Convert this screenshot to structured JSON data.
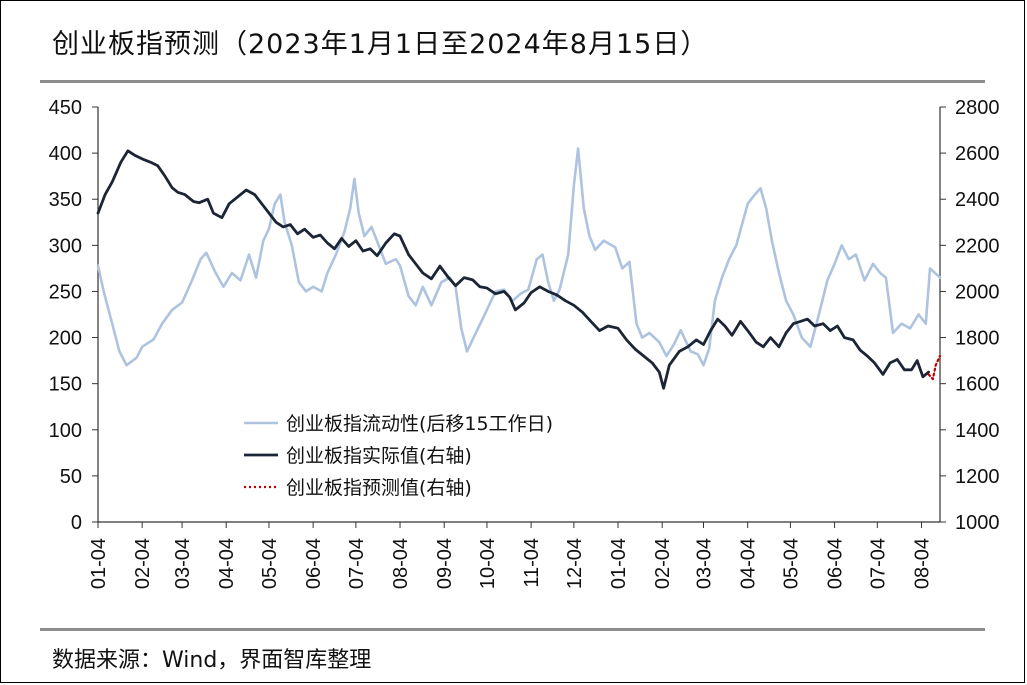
{
  "header": {
    "title": "创业板指预测（2023年1月1日至2024年8月15日）"
  },
  "footer": {
    "source": "数据来源：Wind，界面智库整理"
  },
  "colors": {
    "liquidity": "#aec3df",
    "actual": "#1b2535",
    "forecast": "#c00000",
    "axis": "#333333",
    "rule": "#8c8c8c"
  },
  "chart_data": {
    "type": "line",
    "title": "创业板指预测（2023年1月1日至2024年8月15日）",
    "x_ticks": [
      "01-04",
      "02-04",
      "03-04",
      "04-04",
      "05-04",
      "06-04",
      "07-04",
      "08-04",
      "09-04",
      "10-04",
      "11-04",
      "12-04",
      "01-04",
      "02-04",
      "03-04",
      "04-04",
      "05-04",
      "06-04",
      "07-04",
      "08-04"
    ],
    "x_tick_dates": [
      "2023-01-04",
      "2023-02-04",
      "2023-03-04",
      "2023-04-04",
      "2023-05-04",
      "2023-06-04",
      "2023-07-04",
      "2023-08-04",
      "2023-09-04",
      "2023-10-04",
      "2023-11-04",
      "2023-12-04",
      "2024-01-04",
      "2024-02-04",
      "2024-03-04",
      "2024-04-04",
      "2024-05-04",
      "2024-06-04",
      "2024-07-04",
      "2024-08-04"
    ],
    "x_range": [
      "2023-01-04",
      "2024-08-17"
    ],
    "y_left": {
      "ticks": [
        0,
        50,
        100,
        150,
        200,
        250,
        300,
        350,
        400,
        450
      ],
      "lim": [
        0,
        450
      ]
    },
    "y_right": {
      "ticks": [
        1000,
        1200,
        1400,
        1600,
        1800,
        2000,
        2200,
        2400,
        2600,
        2800
      ],
      "lim": [
        1000,
        2800
      ]
    },
    "legend": [
      "创业板指流动性(后移15工作日)",
      "创业板指实际值(右轴)",
      "创业板指预测值(右轴)"
    ],
    "legend_position": "bottom-center",
    "series": [
      {
        "name": "创业板指流动性(后移15工作日)",
        "axis": "left",
        "points": [
          [
            "2023-01-04",
            278
          ],
          [
            "2023-01-08",
            250
          ],
          [
            "2023-01-14",
            215
          ],
          [
            "2023-01-19",
            185
          ],
          [
            "2023-01-24",
            170
          ],
          [
            "2023-01-31",
            178
          ],
          [
            "2023-02-04",
            190
          ],
          [
            "2023-02-12",
            198
          ],
          [
            "2023-02-18",
            215
          ],
          [
            "2023-02-25",
            230
          ],
          [
            "2023-03-04",
            238
          ],
          [
            "2023-03-11",
            262
          ],
          [
            "2023-03-17",
            285
          ],
          [
            "2023-03-21",
            292
          ],
          [
            "2023-03-27",
            272
          ],
          [
            "2023-04-02",
            255
          ],
          [
            "2023-04-08",
            270
          ],
          [
            "2023-04-14",
            262
          ],
          [
            "2023-04-20",
            290
          ],
          [
            "2023-04-25",
            265
          ],
          [
            "2023-04-30",
            305
          ],
          [
            "2023-05-04",
            318
          ],
          [
            "2023-05-08",
            345
          ],
          [
            "2023-05-12",
            355
          ],
          [
            "2023-05-15",
            325
          ],
          [
            "2023-05-20",
            300
          ],
          [
            "2023-05-25",
            260
          ],
          [
            "2023-05-30",
            250
          ],
          [
            "2023-06-04",
            255
          ],
          [
            "2023-06-10",
            250
          ],
          [
            "2023-06-14",
            270
          ],
          [
            "2023-06-20",
            290
          ],
          [
            "2023-06-26",
            315
          ],
          [
            "2023-06-30",
            340
          ],
          [
            "2023-07-03",
            372
          ],
          [
            "2023-07-06",
            335
          ],
          [
            "2023-07-10",
            310
          ],
          [
            "2023-07-15",
            320
          ],
          [
            "2023-07-20",
            300
          ],
          [
            "2023-07-25",
            280
          ],
          [
            "2023-08-01",
            285
          ],
          [
            "2023-08-04",
            278
          ],
          [
            "2023-08-10",
            245
          ],
          [
            "2023-08-15",
            235
          ],
          [
            "2023-08-20",
            255
          ],
          [
            "2023-08-26",
            235
          ],
          [
            "2023-09-02",
            260
          ],
          [
            "2023-09-08",
            265
          ],
          [
            "2023-09-12",
            255
          ],
          [
            "2023-09-16",
            210
          ],
          [
            "2023-09-20",
            185
          ],
          [
            "2023-09-24",
            198
          ],
          [
            "2023-10-04",
            230
          ],
          [
            "2023-10-10",
            250
          ],
          [
            "2023-10-16",
            252
          ],
          [
            "2023-10-22",
            240
          ],
          [
            "2023-10-28",
            248
          ],
          [
            "2023-11-02",
            252
          ],
          [
            "2023-11-08",
            285
          ],
          [
            "2023-11-12",
            290
          ],
          [
            "2023-11-16",
            260
          ],
          [
            "2023-11-20",
            240
          ],
          [
            "2023-11-24",
            252
          ],
          [
            "2023-11-30",
            290
          ],
          [
            "2023-12-04",
            365
          ],
          [
            "2023-12-07",
            405
          ],
          [
            "2023-12-11",
            340
          ],
          [
            "2023-12-15",
            310
          ],
          [
            "2023-12-19",
            295
          ],
          [
            "2023-12-25",
            305
          ],
          [
            "2024-01-02",
            298
          ],
          [
            "2024-01-07",
            275
          ],
          [
            "2024-01-12",
            282
          ],
          [
            "2024-01-17",
            215
          ],
          [
            "2024-01-21",
            200
          ],
          [
            "2024-01-26",
            205
          ],
          [
            "2024-02-02",
            195
          ],
          [
            "2024-02-07",
            180
          ],
          [
            "2024-02-12",
            192
          ],
          [
            "2024-02-17",
            208
          ],
          [
            "2024-02-24",
            185
          ],
          [
            "2024-02-29",
            182
          ],
          [
            "2024-03-04",
            170
          ],
          [
            "2024-03-08",
            188
          ],
          [
            "2024-03-12",
            240
          ],
          [
            "2024-03-17",
            265
          ],
          [
            "2024-03-22",
            285
          ],
          [
            "2024-03-27",
            300
          ],
          [
            "2024-04-04",
            345
          ],
          [
            "2024-04-09",
            355
          ],
          [
            "2024-04-13",
            362
          ],
          [
            "2024-04-17",
            340
          ],
          [
            "2024-04-21",
            305
          ],
          [
            "2024-04-26",
            270
          ],
          [
            "2024-05-01",
            240
          ],
          [
            "2024-05-06",
            225
          ],
          [
            "2024-05-12",
            200
          ],
          [
            "2024-05-18",
            190
          ],
          [
            "2024-05-24",
            225
          ],
          [
            "2024-05-30",
            262
          ],
          [
            "2024-06-04",
            280
          ],
          [
            "2024-06-09",
            300
          ],
          [
            "2024-06-14",
            285
          ],
          [
            "2024-06-19",
            290
          ],
          [
            "2024-06-25",
            262
          ],
          [
            "2024-07-01",
            280
          ],
          [
            "2024-07-06",
            270
          ],
          [
            "2024-07-10",
            265
          ],
          [
            "2024-07-15",
            205
          ],
          [
            "2024-07-21",
            215
          ],
          [
            "2024-07-27",
            210
          ],
          [
            "2024-08-02",
            225
          ],
          [
            "2024-08-07",
            215
          ],
          [
            "2024-08-10",
            275
          ],
          [
            "2024-08-17",
            265
          ]
        ]
      },
      {
        "name": "创业板指实际值(右轴)",
        "axis": "right",
        "points": [
          [
            "2023-01-04",
            2340
          ],
          [
            "2023-01-09",
            2420
          ],
          [
            "2023-01-14",
            2475
          ],
          [
            "2023-01-20",
            2560
          ],
          [
            "2023-01-25",
            2610
          ],
          [
            "2023-01-30",
            2590
          ],
          [
            "2023-02-04",
            2575
          ],
          [
            "2023-02-10",
            2560
          ],
          [
            "2023-02-15",
            2545
          ],
          [
            "2023-02-20",
            2500
          ],
          [
            "2023-02-25",
            2450
          ],
          [
            "2023-03-01",
            2430
          ],
          [
            "2023-03-06",
            2420
          ],
          [
            "2023-03-12",
            2390
          ],
          [
            "2023-03-16",
            2385
          ],
          [
            "2023-03-22",
            2400
          ],
          [
            "2023-03-26",
            2340
          ],
          [
            "2023-04-01",
            2320
          ],
          [
            "2023-04-06",
            2380
          ],
          [
            "2023-04-12",
            2410
          ],
          [
            "2023-04-18",
            2440
          ],
          [
            "2023-04-24",
            2420
          ],
          [
            "2023-04-29",
            2380
          ],
          [
            "2023-05-04",
            2340
          ],
          [
            "2023-05-09",
            2300
          ],
          [
            "2023-05-14",
            2280
          ],
          [
            "2023-05-19",
            2290
          ],
          [
            "2023-05-24",
            2250
          ],
          [
            "2023-05-29",
            2270
          ],
          [
            "2023-06-04",
            2235
          ],
          [
            "2023-06-09",
            2245
          ],
          [
            "2023-06-14",
            2210
          ],
          [
            "2023-06-19",
            2185
          ],
          [
            "2023-06-24",
            2230
          ],
          [
            "2023-06-29",
            2195
          ],
          [
            "2023-07-04",
            2220
          ],
          [
            "2023-07-09",
            2175
          ],
          [
            "2023-07-14",
            2185
          ],
          [
            "2023-07-19",
            2155
          ],
          [
            "2023-07-25",
            2210
          ],
          [
            "2023-07-31",
            2250
          ],
          [
            "2023-08-04",
            2240
          ],
          [
            "2023-08-10",
            2160
          ],
          [
            "2023-08-15",
            2120
          ],
          [
            "2023-08-20",
            2080
          ],
          [
            "2023-08-26",
            2055
          ],
          [
            "2023-09-01",
            2110
          ],
          [
            "2023-09-07",
            2060
          ],
          [
            "2023-09-12",
            2025
          ],
          [
            "2023-09-18",
            2060
          ],
          [
            "2023-09-24",
            2050
          ],
          [
            "2023-09-29",
            2020
          ],
          [
            "2023-10-04",
            2015
          ],
          [
            "2023-10-10",
            1990
          ],
          [
            "2023-10-16",
            2000
          ],
          [
            "2023-10-20",
            1975
          ],
          [
            "2023-10-24",
            1920
          ],
          [
            "2023-10-30",
            1950
          ],
          [
            "2023-11-04",
            1995
          ],
          [
            "2023-11-10",
            2020
          ],
          [
            "2023-11-16",
            2000
          ],
          [
            "2023-11-22",
            1985
          ],
          [
            "2023-11-28",
            1960
          ],
          [
            "2023-12-04",
            1940
          ],
          [
            "2023-12-10",
            1910
          ],
          [
            "2023-12-16",
            1870
          ],
          [
            "2023-12-22",
            1830
          ],
          [
            "2023-12-28",
            1850
          ],
          [
            "2024-01-04",
            1840
          ],
          [
            "2024-01-10",
            1790
          ],
          [
            "2024-01-16",
            1750
          ],
          [
            "2024-01-22",
            1720
          ],
          [
            "2024-01-28",
            1690
          ],
          [
            "2024-02-02",
            1650
          ],
          [
            "2024-02-05",
            1580
          ],
          [
            "2024-02-09",
            1680
          ],
          [
            "2024-02-16",
            1740
          ],
          [
            "2024-02-22",
            1760
          ],
          [
            "2024-02-28",
            1790
          ],
          [
            "2024-03-04",
            1770
          ],
          [
            "2024-03-09",
            1830
          ],
          [
            "2024-03-14",
            1880
          ],
          [
            "2024-03-19",
            1850
          ],
          [
            "2024-03-24",
            1810
          ],
          [
            "2024-03-30",
            1870
          ],
          [
            "2024-04-04",
            1830
          ],
          [
            "2024-04-10",
            1780
          ],
          [
            "2024-04-15",
            1760
          ],
          [
            "2024-04-20",
            1800
          ],
          [
            "2024-04-26",
            1760
          ],
          [
            "2024-05-01",
            1820
          ],
          [
            "2024-05-06",
            1860
          ],
          [
            "2024-05-11",
            1870
          ],
          [
            "2024-05-16",
            1880
          ],
          [
            "2024-05-21",
            1850
          ],
          [
            "2024-05-27",
            1860
          ],
          [
            "2024-06-01",
            1830
          ],
          [
            "2024-06-06",
            1850
          ],
          [
            "2024-06-11",
            1800
          ],
          [
            "2024-06-17",
            1790
          ],
          [
            "2024-06-22",
            1745
          ],
          [
            "2024-06-27",
            1720
          ],
          [
            "2024-07-02",
            1690
          ],
          [
            "2024-07-08",
            1640
          ],
          [
            "2024-07-13",
            1690
          ],
          [
            "2024-07-18",
            1705
          ],
          [
            "2024-07-23",
            1660
          ],
          [
            "2024-07-28",
            1660
          ],
          [
            "2024-08-01",
            1700
          ],
          [
            "2024-08-05",
            1630
          ],
          [
            "2024-08-09",
            1650
          ]
        ]
      },
      {
        "name": "创业板指预测值(右轴)",
        "axis": "right",
        "points": [
          [
            "2024-08-09",
            1640
          ],
          [
            "2024-08-12",
            1620
          ],
          [
            "2024-08-14",
            1680
          ],
          [
            "2024-08-17",
            1720
          ]
        ]
      }
    ]
  }
}
